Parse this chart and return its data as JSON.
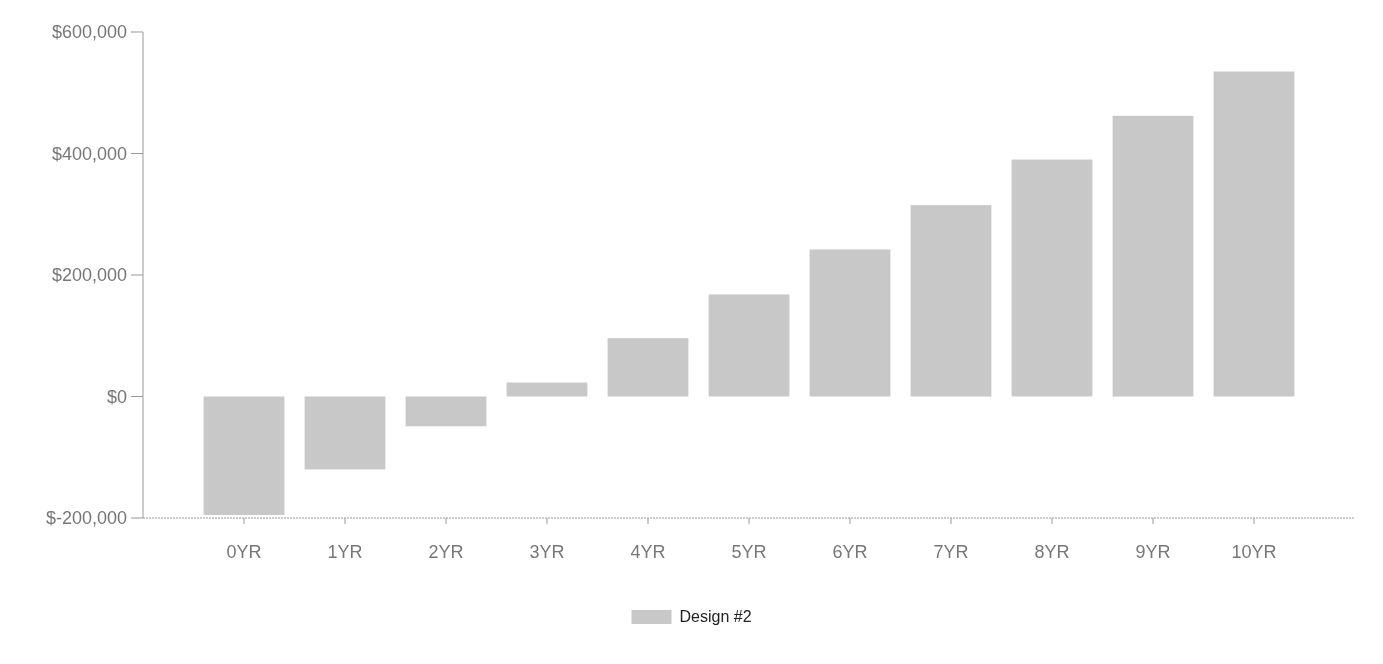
{
  "chart_data": {
    "type": "bar",
    "categories": [
      "0YR",
      "1YR",
      "2YR",
      "3YR",
      "4YR",
      "5YR",
      "6YR",
      "7YR",
      "8YR",
      "9YR",
      "10YR"
    ],
    "series": [
      {
        "name": "Design #2",
        "color": "#c8c8c8",
        "values": [
          -195000,
          -120000,
          -49000,
          23000,
          96000,
          168000,
          242000,
          315000,
          390000,
          462000,
          535000
        ]
      }
    ],
    "ylim": [
      -200000,
      600000
    ],
    "yticks": [
      {
        "value": -200000,
        "label": "$-200,000"
      },
      {
        "value": 0,
        "label": "$0"
      },
      {
        "value": 200000,
        "label": "$200,000"
      },
      {
        "value": 400000,
        "label": "$400,000"
      },
      {
        "value": 600000,
        "label": "$600,000"
      }
    ],
    "grid": false,
    "legend": "bottom"
  }
}
